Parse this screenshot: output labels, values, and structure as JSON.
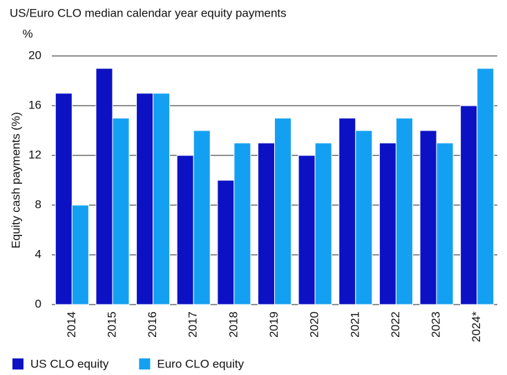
{
  "chart_data": {
    "type": "bar",
    "title": "US/Euro CLO median calendar year equity payments",
    "y_unit": "%",
    "y_label": "Equity cash payments (%)",
    "categories": [
      "2014",
      "2015",
      "2016",
      "2017",
      "2018",
      "2019",
      "2020",
      "2021",
      "2022",
      "2023",
      "2024*"
    ],
    "series": [
      {
        "name": "US CLO equity",
        "color": "#0c12c4",
        "values": [
          17,
          19,
          17,
          12,
          10,
          13,
          12,
          15,
          13,
          14,
          16
        ]
      },
      {
        "name": "Euro CLO equity",
        "color": "#14a0f2",
        "values": [
          8,
          15,
          17,
          14,
          13,
          15,
          13,
          14,
          15,
          13,
          19
        ]
      }
    ],
    "ylim": [
      0,
      20
    ],
    "yticks": [
      0,
      4,
      8,
      12,
      16,
      20
    ],
    "grid": true,
    "legend": "bottom"
  }
}
